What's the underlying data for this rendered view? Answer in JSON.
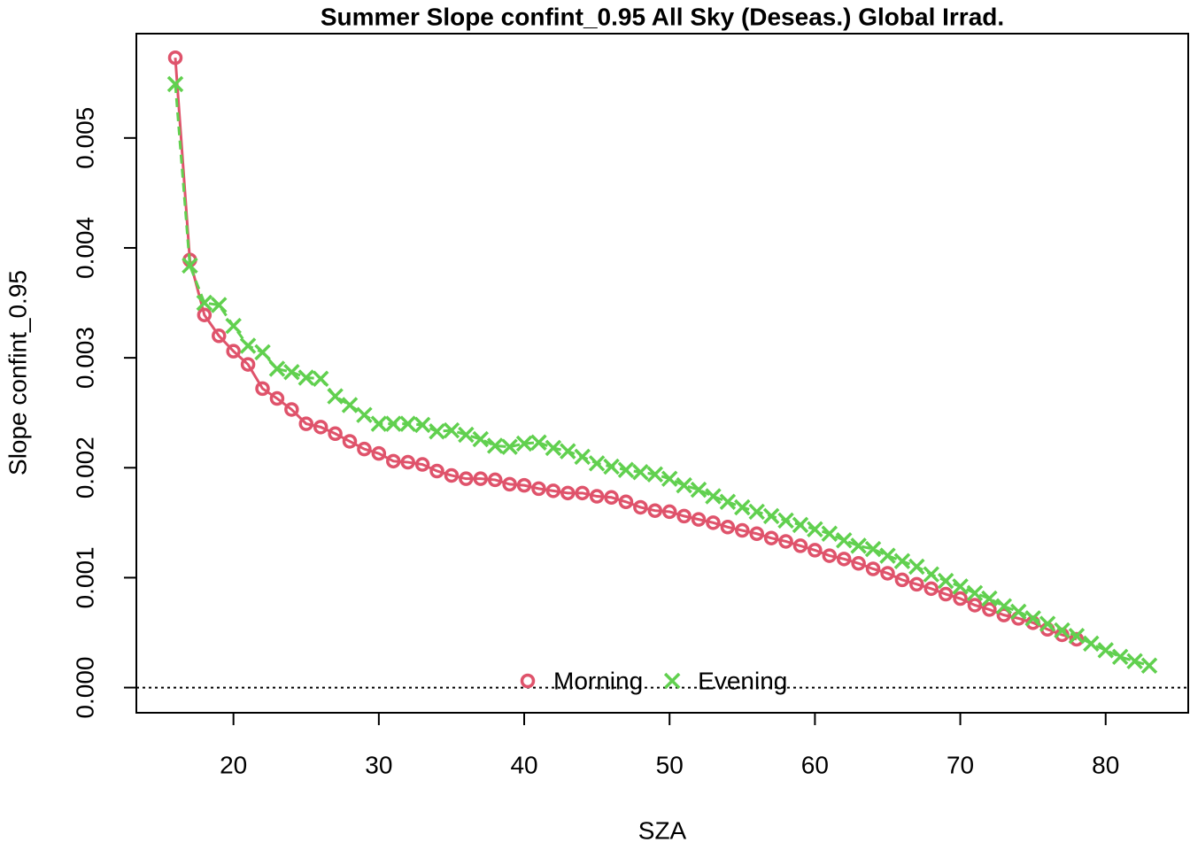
{
  "chart_data": {
    "type": "scatter",
    "title": "Summer Slope confint_0.95 All Sky (Deseas.) Global Irrad.",
    "xlabel": "SZA",
    "ylabel": "Slope confint_0.95",
    "xlim": [
      13.32,
      85.68
    ],
    "ylim": [
      -0.000229,
      0.005949
    ],
    "xticks": [
      20,
      30,
      40,
      50,
      60,
      70,
      80
    ],
    "yticks": [
      {
        "value": 0,
        "label": "0.000"
      },
      0.001,
      0.002,
      0.003,
      0.004,
      0.005
    ],
    "reference_line": 0,
    "legend": "bottom",
    "series": [
      {
        "name": "Morning",
        "color": "#DF536B",
        "marker": "circle",
        "x": [
          16,
          17,
          18,
          19,
          20,
          21,
          22,
          23,
          24,
          25,
          26,
          27,
          28,
          29,
          30,
          31,
          32,
          33,
          34,
          35,
          36,
          37,
          38,
          39,
          40,
          41,
          42,
          43,
          44,
          45,
          46,
          47,
          48,
          49,
          50,
          51,
          52,
          53,
          54,
          55,
          56,
          57,
          58,
          59,
          60,
          61,
          62,
          63,
          64,
          65,
          66,
          67,
          68,
          69,
          70,
          71,
          72,
          73,
          74,
          75,
          76,
          77,
          78
        ],
        "values": [
          0.00573,
          0.00389,
          0.00339,
          0.0032,
          0.00306,
          0.00294,
          0.00272,
          0.00263,
          0.00253,
          0.0024,
          0.00237,
          0.00231,
          0.00224,
          0.00217,
          0.00213,
          0.00206,
          0.00205,
          0.00203,
          0.00197,
          0.00193,
          0.0019,
          0.0019,
          0.00189,
          0.00185,
          0.00184,
          0.00181,
          0.00179,
          0.00177,
          0.00177,
          0.00174,
          0.00173,
          0.00169,
          0.00164,
          0.00161,
          0.0016,
          0.00156,
          0.00153,
          0.0015,
          0.00146,
          0.00143,
          0.0014,
          0.00136,
          0.00133,
          0.00129,
          0.00125,
          0.0012,
          0.00117,
          0.00113,
          0.00108,
          0.00104,
          0.00098,
          0.00094,
          0.0009,
          0.00085,
          0.00081,
          0.00075,
          0.00071,
          0.00066,
          0.00063,
          0.00059,
          0.00053,
          0.00048,
          0.00044
        ]
      },
      {
        "name": "Evening",
        "color": "#61D04F",
        "marker": "cross",
        "x": [
          16,
          17,
          18,
          19,
          20,
          21,
          22,
          23,
          24,
          25,
          26,
          27,
          28,
          29,
          30,
          31,
          32,
          33,
          34,
          35,
          36,
          37,
          38,
          39,
          40,
          41,
          42,
          43,
          44,
          45,
          46,
          47,
          48,
          49,
          50,
          51,
          52,
          53,
          54,
          55,
          56,
          57,
          58,
          59,
          60,
          61,
          62,
          63,
          64,
          65,
          66,
          67,
          68,
          69,
          70,
          71,
          72,
          73,
          74,
          75,
          76,
          77,
          78,
          79,
          80,
          81,
          82,
          83
        ],
        "values": [
          0.00549,
          0.00384,
          0.0035,
          0.00348,
          0.00329,
          0.00311,
          0.00305,
          0.0029,
          0.00287,
          0.00282,
          0.00281,
          0.00265,
          0.00257,
          0.00248,
          0.0024,
          0.0024,
          0.0024,
          0.00239,
          0.00233,
          0.00234,
          0.0023,
          0.00226,
          0.0022,
          0.00219,
          0.00222,
          0.00223,
          0.00218,
          0.00215,
          0.0021,
          0.00204,
          0.00201,
          0.00198,
          0.00196,
          0.00194,
          0.0019,
          0.00184,
          0.0018,
          0.00174,
          0.00169,
          0.00164,
          0.0016,
          0.00156,
          0.00152,
          0.00148,
          0.00144,
          0.0014,
          0.00134,
          0.00129,
          0.00126,
          0.0012,
          0.00115,
          0.0011,
          0.00103,
          0.00097,
          0.00092,
          0.00086,
          0.00081,
          0.00074,
          0.00069,
          0.00063,
          0.00058,
          0.00052,
          0.00047,
          0.0004,
          0.00034,
          0.00028,
          0.00024,
          0.0002
        ]
      }
    ]
  }
}
